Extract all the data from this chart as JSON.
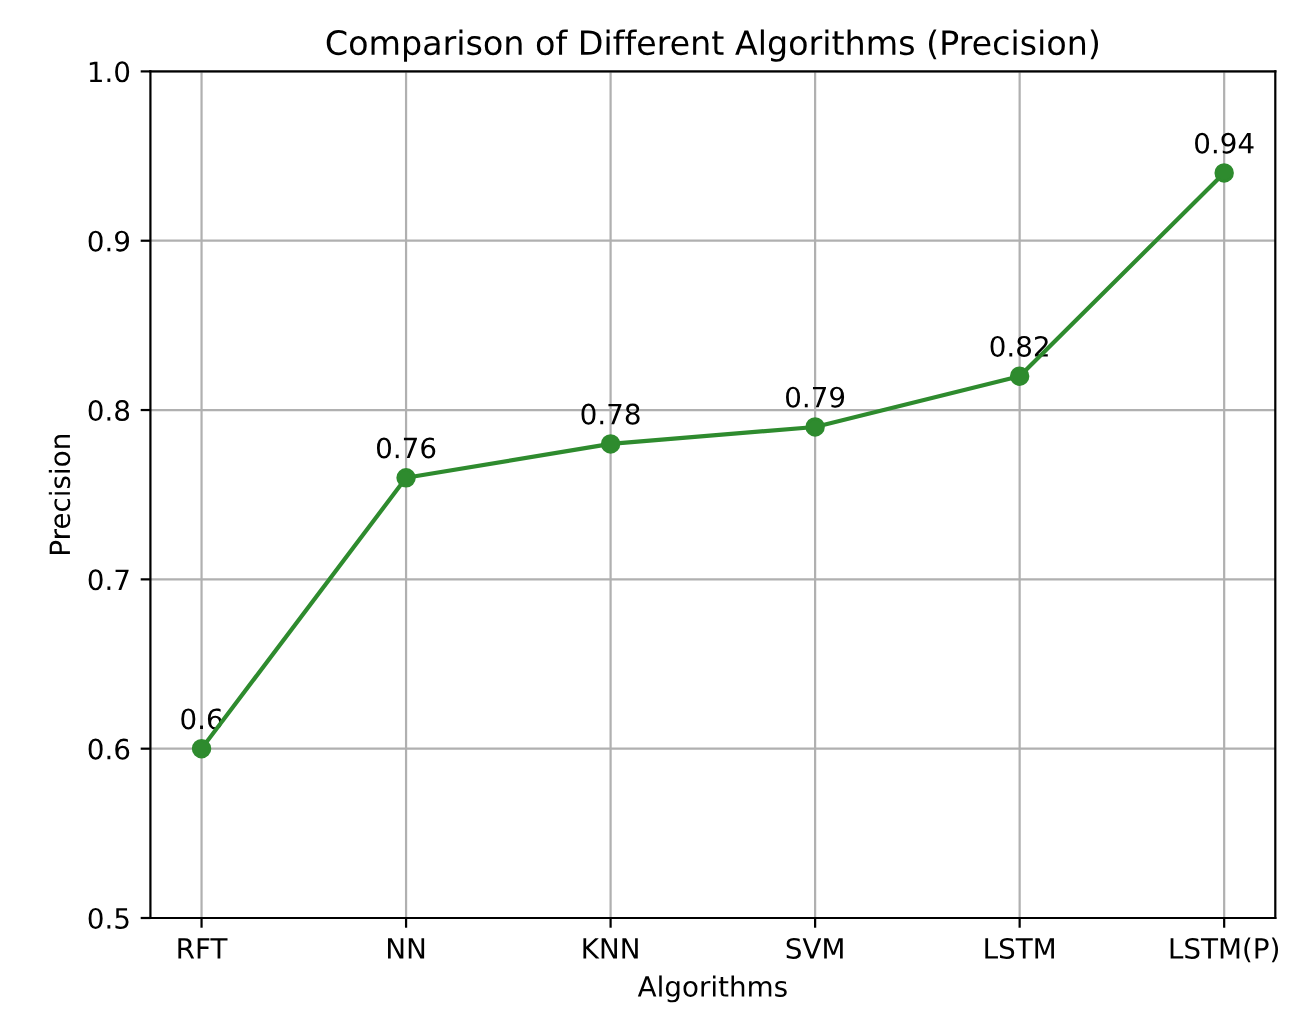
{
  "chart_data": {
    "type": "line",
    "title": "Comparison of Different Algorithms (Precision)",
    "xlabel": "Algorithms",
    "ylabel": "Precision",
    "categories": [
      "RFT",
      "NN",
      "KNN",
      "SVM",
      "LSTM",
      "LSTM(P)"
    ],
    "series": [
      {
        "color": "#2e8b2e",
        "values": [
          0.6,
          0.76,
          0.78,
          0.79,
          0.82,
          0.94
        ]
      }
    ],
    "ylim": [
      0.5,
      1.0
    ],
    "yticks": [
      0.5,
      0.6,
      0.7,
      0.8,
      0.9,
      {
        "value": 1,
        "label": "1.0"
      }
    ],
    "grid": true,
    "marker": "circle",
    "line_style": "solid",
    "data_labels": true
  }
}
